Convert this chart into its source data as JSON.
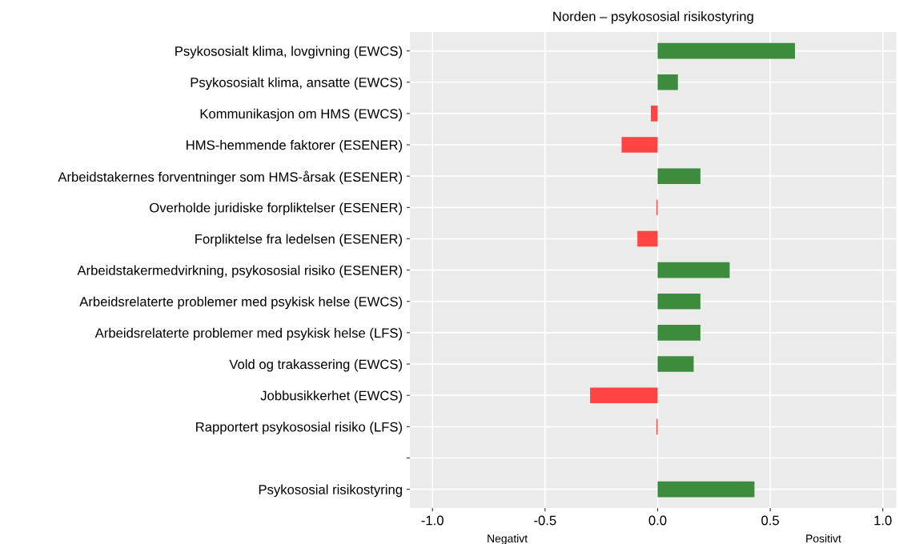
{
  "chart_data": {
    "type": "bar",
    "orientation": "horizontal",
    "title": "Norden – psykososial risikostyring",
    "categories": [
      "Psykososialt klima, lovgivning (EWCS)",
      "Psykososialt klima, ansatte (EWCS)",
      "Kommunikasjon om HMS (EWCS)",
      "HMS-hemmende faktorer (ESENER)",
      "Arbeidstakernes forventninger som HMS-årsak (ESENER)",
      "Overholde juridiske forpliktelser (ESENER)",
      "Forpliktelse fra ledelsen (ESENER)",
      "Arbeidstakermedvirkning, psykososial risiko (ESENER)",
      "Arbeidsrelaterte problemer med psykisk helse (EWCS)",
      "Arbeidsrelaterte problemer med psykisk helse (LFS)",
      "Vold og trakassering (EWCS)",
      "Jobbusikkerhet (EWCS)",
      "Rapportert psykososial risiko (LFS)",
      null,
      "Psykososial risikostyring"
    ],
    "values": [
      0.61,
      0.09,
      -0.03,
      -0.16,
      0.19,
      -0.005,
      -0.09,
      0.32,
      0.19,
      0.19,
      0.16,
      -0.3,
      -0.005,
      null,
      0.43
    ],
    "colors": [
      "#3d8b3d",
      "#3d8b3d",
      "#ff4444",
      "#ff4444",
      "#3d8b3d",
      "#ff4444",
      "#ff4444",
      "#3d8b3d",
      "#3d8b3d",
      "#3d8b3d",
      "#3d8b3d",
      "#ff4444",
      "#ff4444",
      "#3d8b3d",
      "#3d8b3d"
    ],
    "xlim": [
      -1.1,
      1.06
    ],
    "xticks": [
      {
        "value": -1.0,
        "label": "-1.0"
      },
      {
        "value": -0.5,
        "label": "-0.5"
      },
      {
        "value": 0.0,
        "label": "0.0"
      },
      {
        "value": 0.5,
        "label": "0.5"
      },
      {
        "value": 1.0,
        "label": "1.0"
      }
    ],
    "grid": true,
    "annotations": [
      "Negativt",
      "Positivt"
    ]
  }
}
